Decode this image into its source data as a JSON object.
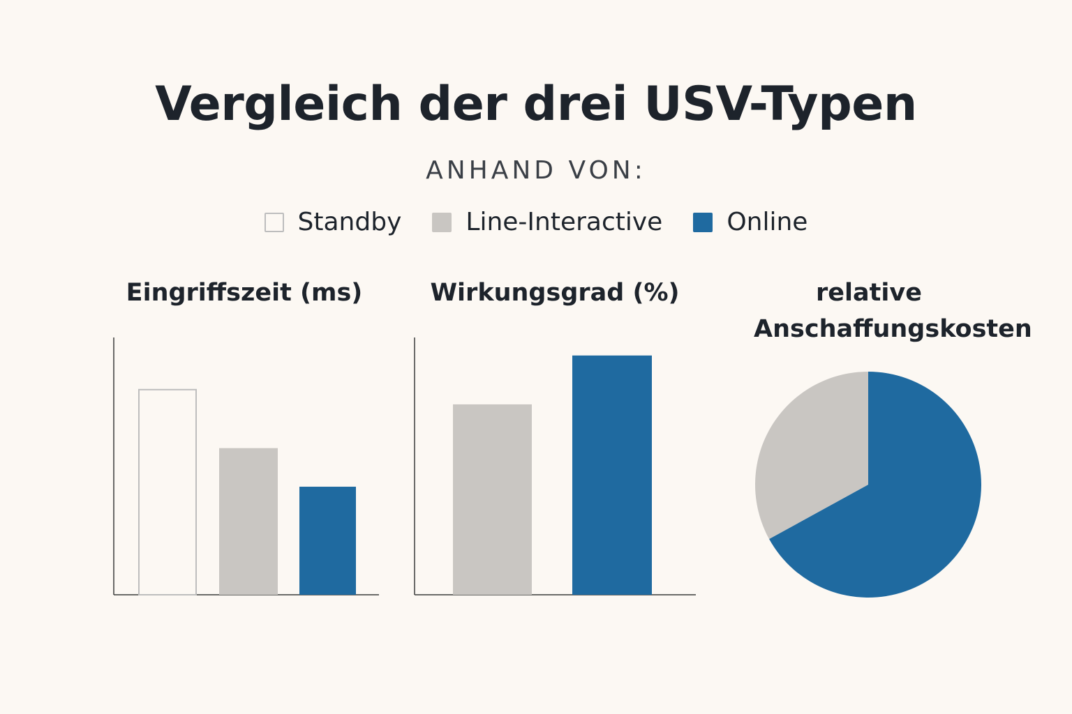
{
  "header": {
    "title": "Vergleich der drei USV-Typen",
    "subtitle": "ANHAND VON:"
  },
  "legend": [
    {
      "label": "Standby",
      "fill": "#fcf8f3",
      "stroke": "#bdbdbd"
    },
    {
      "label": "Line-Interactive",
      "fill": "#c9c6c2",
      "stroke": "#c9c6c2"
    },
    {
      "label": "Online",
      "fill": "#1f6aa0",
      "stroke": "#1f6aa0"
    }
  ],
  "chart_data": [
    {
      "type": "bar",
      "title": "Eingriffszeit (ms)",
      "categories": [
        "Standby",
        "Line-Interactive",
        "Online"
      ],
      "values": [
        8,
        5.7,
        4.2
      ],
      "ylim": [
        0,
        10
      ],
      "xlabel": "",
      "ylabel": "",
      "grid": false
    },
    {
      "type": "bar",
      "title": "Wirkungsgrad (%)",
      "categories": [
        "Line-Interactive",
        "Online"
      ],
      "values": [
        7.4,
        9.3
      ],
      "ylim": [
        0,
        10
      ],
      "xlabel": "",
      "ylabel": "",
      "grid": false
    },
    {
      "type": "pie",
      "title": "relative Anschaffungskosten",
      "categories": [
        "Online",
        "Line-Interactive"
      ],
      "values": [
        67,
        33
      ]
    }
  ]
}
